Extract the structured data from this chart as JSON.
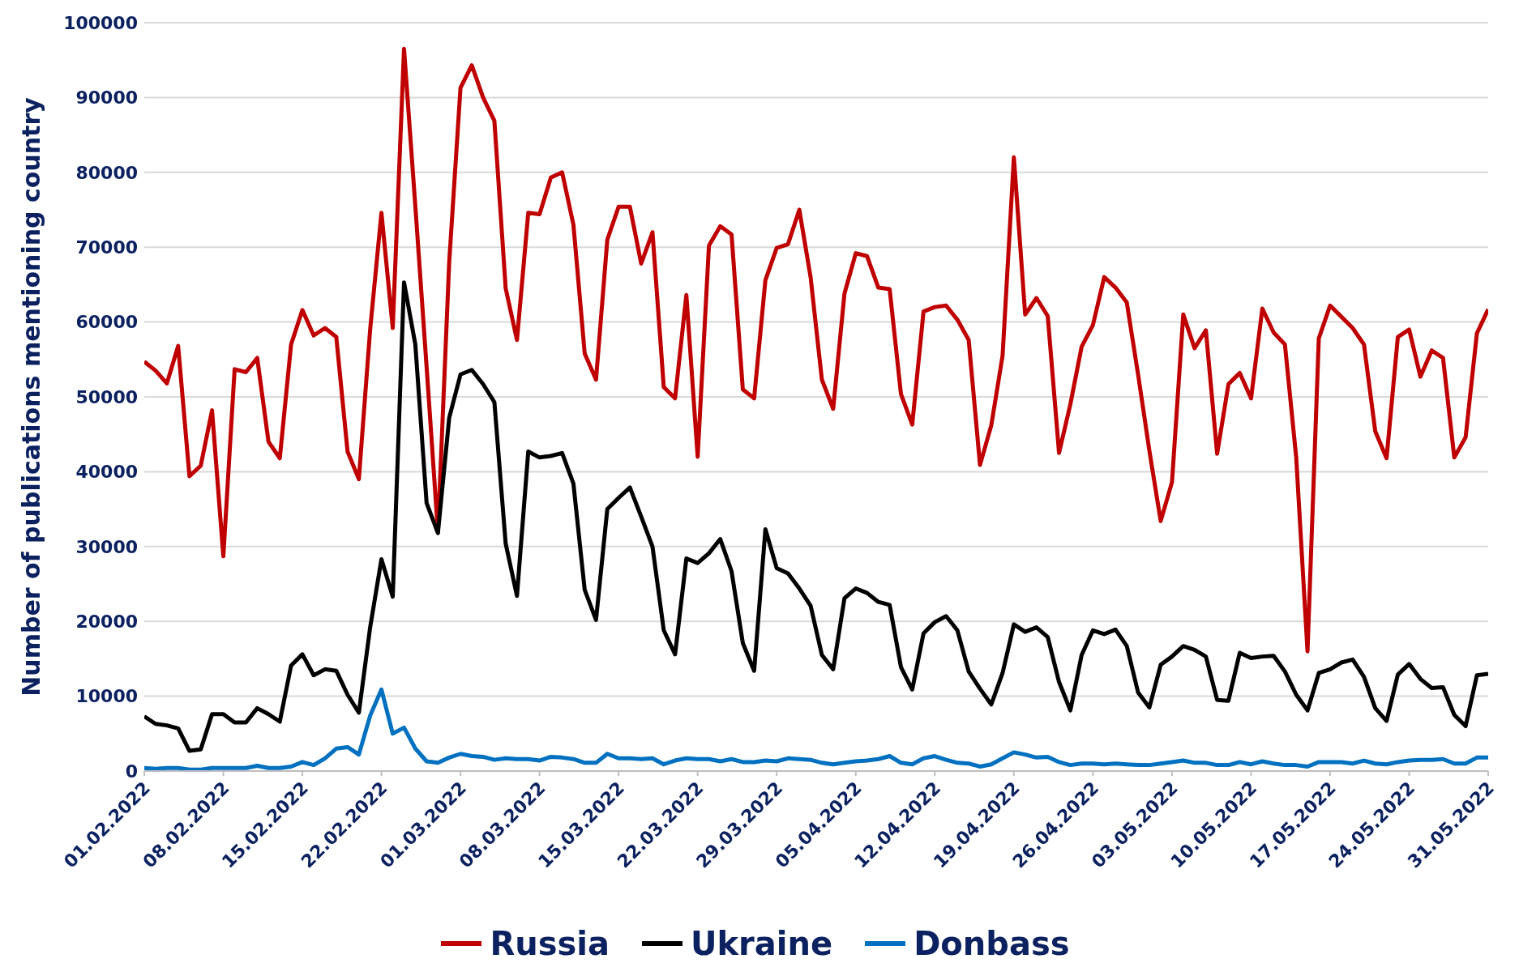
{
  "chart_data": {
    "type": "line",
    "ylabel": "Number of publications mentioning country",
    "x": [
      "2022-02-01",
      "2022-02-02",
      "2022-02-03",
      "2022-02-04",
      "2022-02-05",
      "2022-02-06",
      "2022-02-07",
      "2022-02-08",
      "2022-02-09",
      "2022-02-10",
      "2022-02-11",
      "2022-02-12",
      "2022-02-13",
      "2022-02-14",
      "2022-02-15",
      "2022-02-16",
      "2022-02-17",
      "2022-02-18",
      "2022-02-19",
      "2022-02-20",
      "2022-02-21",
      "2022-02-22",
      "2022-02-23",
      "2022-02-24",
      "2022-02-25",
      "2022-02-26",
      "2022-02-27",
      "2022-02-28",
      "2022-03-01",
      "2022-03-02",
      "2022-03-03",
      "2022-03-04",
      "2022-03-05",
      "2022-03-06",
      "2022-03-07",
      "2022-03-08",
      "2022-03-09",
      "2022-03-10",
      "2022-03-11",
      "2022-03-12",
      "2022-03-13",
      "2022-03-14",
      "2022-03-15",
      "2022-03-16",
      "2022-03-17",
      "2022-03-18",
      "2022-03-19",
      "2022-03-20",
      "2022-03-21",
      "2022-03-22",
      "2022-03-23",
      "2022-03-24",
      "2022-03-25",
      "2022-03-26",
      "2022-03-27",
      "2022-03-28",
      "2022-03-29",
      "2022-03-30",
      "2022-03-31",
      "2022-04-01",
      "2022-04-02",
      "2022-04-03",
      "2022-04-04",
      "2022-04-05",
      "2022-04-06",
      "2022-04-07",
      "2022-04-08",
      "2022-04-09",
      "2022-04-10",
      "2022-04-11",
      "2022-04-12",
      "2022-04-13",
      "2022-04-14",
      "2022-04-15",
      "2022-04-16",
      "2022-04-17",
      "2022-04-18",
      "2022-04-19",
      "2022-04-20",
      "2022-04-21",
      "2022-04-22",
      "2022-04-23",
      "2022-04-24",
      "2022-04-25",
      "2022-04-26",
      "2022-04-27",
      "2022-04-28",
      "2022-04-29",
      "2022-04-30",
      "2022-05-01",
      "2022-05-02",
      "2022-05-03",
      "2022-05-04",
      "2022-05-05",
      "2022-05-06",
      "2022-05-07",
      "2022-05-08",
      "2022-05-09",
      "2022-05-10",
      "2022-05-11",
      "2022-05-12",
      "2022-05-13",
      "2022-05-14",
      "2022-05-15",
      "2022-05-16",
      "2022-05-17",
      "2022-05-18",
      "2022-05-19",
      "2022-05-20",
      "2022-05-21",
      "2022-05-22",
      "2022-05-23",
      "2022-05-24",
      "2022-05-25",
      "2022-05-26",
      "2022-05-27",
      "2022-05-28",
      "2022-05-29",
      "2022-05-30",
      "2022-05-31"
    ],
    "series": [
      {
        "name": "Russia",
        "color": "#c00000",
        "values": [
          54700,
          53500,
          51800,
          56800,
          39400,
          40800,
          48200,
          28700,
          53700,
          53300,
          55200,
          44000,
          41800,
          57000,
          61600,
          58200,
          59200,
          58000,
          42700,
          39000,
          59000,
          74600,
          59200,
          96500,
          75500,
          54000,
          32000,
          68000,
          91300,
          94300,
          90000,
          86900,
          64500,
          57600,
          74600,
          74400,
          79300,
          80000,
          73000,
          55800,
          52300,
          71000,
          75400,
          75400,
          67800,
          72000,
          51300,
          49800,
          63600,
          42000,
          70200,
          72800,
          71700,
          51000,
          49800,
          65600,
          69900,
          70400,
          75000,
          66000,
          52300,
          48400,
          63800,
          69200,
          68800,
          64600,
          64400,
          50400,
          46300,
          61400,
          62000,
          62200,
          60300,
          57600,
          40900,
          46200,
          55500,
          82000,
          61000,
          63200,
          60800,
          42500,
          49000,
          56700,
          59600,
          66000,
          64600,
          62600,
          53000,
          42800,
          33400,
          38600,
          61000,
          56500,
          58900,
          42400,
          51700,
          53200,
          49800,
          61800,
          58600,
          57000,
          41900,
          16000,
          57800,
          62200,
          60700,
          59200,
          57000,
          45400,
          41800,
          58000,
          59000,
          52700,
          56200,
          55200,
          41900,
          44600,
          58500,
          61700
        ]
      },
      {
        "name": "Ukraine",
        "color": "#000000",
        "values": [
          7300,
          6300,
          6100,
          5700,
          2700,
          2900,
          7600,
          7600,
          6500,
          6500,
          8400,
          7600,
          6600,
          14100,
          15600,
          12800,
          13600,
          13400,
          10200,
          7800,
          19200,
          28300,
          23300,
          65300,
          57000,
          35800,
          31800,
          47200,
          53000,
          53600,
          51700,
          49300,
          30400,
          23400,
          42700,
          41900,
          42100,
          42500,
          38400,
          24200,
          20200,
          35000,
          36500,
          37900,
          34000,
          30000,
          18800,
          15600,
          28400,
          27800,
          29100,
          31000,
          26700,
          17100,
          13400,
          32300,
          27100,
          26400,
          24400,
          22100,
          15500,
          13600,
          23100,
          24400,
          23800,
          22600,
          22200,
          13900,
          10900,
          18400,
          19900,
          20700,
          18800,
          13300,
          11000,
          8900,
          13100,
          19600,
          18600,
          19200,
          17900,
          11900,
          8100,
          15500,
          18800,
          18300,
          18900,
          16700,
          10500,
          8500,
          14200,
          15300,
          16700,
          16200,
          15300,
          9500,
          9400,
          15800,
          15100,
          15300,
          15400,
          13300,
          10200,
          8100,
          13100,
          13600,
          14500,
          14900,
          12600,
          8400,
          6700,
          12900,
          14300,
          12300,
          11100,
          11200,
          7500,
          6000,
          12800,
          13000
        ]
      },
      {
        "name": "Donbass",
        "color": "#0070c0",
        "values": [
          400,
          300,
          400,
          400,
          200,
          200,
          400,
          400,
          400,
          400,
          700,
          400,
          400,
          600,
          1200,
          800,
          1700,
          3000,
          3200,
          2200,
          7400,
          10900,
          5000,
          5800,
          3000,
          1300,
          1100,
          1800,
          2300,
          2000,
          1900,
          1500,
          1700,
          1600,
          1600,
          1400,
          1900,
          1800,
          1600,
          1100,
          1100,
          2300,
          1700,
          1700,
          1600,
          1700,
          900,
          1400,
          1700,
          1600,
          1600,
          1300,
          1600,
          1200,
          1200,
          1400,
          1300,
          1700,
          1600,
          1500,
          1100,
          900,
          1100,
          1300,
          1400,
          1600,
          2000,
          1100,
          900,
          1700,
          2000,
          1500,
          1100,
          1000,
          600,
          900,
          1700,
          2500,
          2200,
          1800,
          1900,
          1200,
          800,
          1000,
          1000,
          900,
          1000,
          900,
          800,
          800,
          1000,
          1200,
          1400,
          1100,
          1100,
          800,
          800,
          1200,
          900,
          1300,
          1000,
          800,
          800,
          600,
          1200,
          1200,
          1200,
          1000,
          1400,
          1000,
          900,
          1200,
          1400,
          1500,
          1500,
          1600,
          1000,
          1000,
          1800,
          1800
        ]
      }
    ],
    "xlim": [
      "2022-02-01",
      "2022-05-31"
    ],
    "xticks": [
      {
        "value": "2022-02-01",
        "label": "01.02.2022"
      },
      {
        "value": "2022-02-08",
        "label": "08.02.2022"
      },
      {
        "value": "2022-02-15",
        "label": "15.02.2022"
      },
      {
        "value": "2022-02-22",
        "label": "22.02.2022"
      },
      {
        "value": "2022-03-01",
        "label": "01.03.2022"
      },
      {
        "value": "2022-03-08",
        "label": "08.03.2022"
      },
      {
        "value": "2022-03-15",
        "label": "15.03.2022"
      },
      {
        "value": "2022-03-22",
        "label": "22.03.2022"
      },
      {
        "value": "2022-03-29",
        "label": "29.03.2022"
      },
      {
        "value": "2022-04-05",
        "label": "05.04.2022"
      },
      {
        "value": "2022-04-12",
        "label": "12.04.2022"
      },
      {
        "value": "2022-04-19",
        "label": "19.04.2022"
      },
      {
        "value": "2022-04-26",
        "label": "26.04.2022"
      },
      {
        "value": "2022-05-03",
        "label": "03.05.2022"
      },
      {
        "value": "2022-05-10",
        "label": "10.05.2022"
      },
      {
        "value": "2022-05-17",
        "label": "17.05.2022"
      },
      {
        "value": "2022-05-24",
        "label": "24.05.2022"
      },
      {
        "value": "2022-05-31",
        "label": "31.05.2022"
      }
    ],
    "ylim": [
      0,
      100000
    ],
    "yticks": [
      0,
      10000,
      20000,
      30000,
      40000,
      50000,
      60000,
      70000,
      80000,
      90000,
      100000
    ],
    "grid": "y",
    "legend": "bottom",
    "marker": "none",
    "line_style": "solid"
  }
}
